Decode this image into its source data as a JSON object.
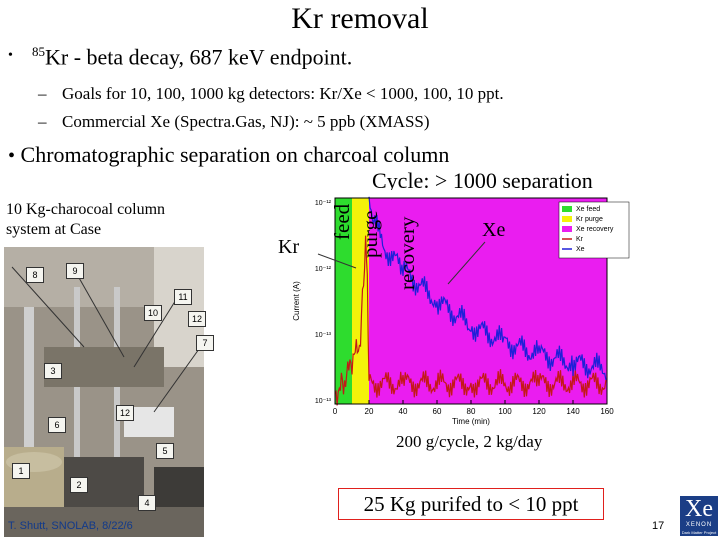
{
  "title": "Kr removal",
  "bullet1": {
    "sup": "85",
    "text": "Kr -  beta decay, 687 keV endpoint."
  },
  "subbullets": [
    {
      "dash": "–",
      "text": "Goals for 10,  100, 1000 kg detectors: Kr/Xe  < 1000, 100, 10 ppt."
    },
    {
      "dash": "–",
      "text": "Commercial Xe (Spectra.Gas, NJ): ~ 5 ppb (XMASS)"
    }
  ],
  "bullet2": {
    "dot": "•",
    "text": "Chromatographic separation on charcoal column"
  },
  "cycle_text": "Cycle:  > 1000 separation",
  "photo_note": [
    "10 Kg-charocoal column",
    "system at Case"
  ],
  "photo_tags": [
    "8",
    "9",
    "11",
    "10",
    "12",
    "7",
    "3",
    "12",
    "6",
    "5",
    "1",
    "2",
    "4"
  ],
  "chart_annotations": {
    "kr": "Kr",
    "xe": "Xe",
    "feed": "feed",
    "purge": "purge",
    "recovery": "recovery"
  },
  "caption": "200 g/cycle, 2 kg/day",
  "highlight_box": "25 Kg purifed to < 10 ppt",
  "footer": "T. Shutt, SNOLAB, 8/22/6",
  "page_number": "17",
  "logo": {
    "big": "Xe",
    "small": "XENON",
    "tiny": "Dark Matter Project"
  },
  "colors": {
    "feed_band": "#2edc2e",
    "purge_band": "#f4f20a",
    "recovery_band": "#ea1df0",
    "xe_trace": "#1f1fd8",
    "kr_trace": "#c41818",
    "box_border": "#e0201d"
  },
  "chart_data": {
    "type": "line",
    "xlabel": "Time (min)",
    "ylabel": "Current (A)",
    "xlim": [
      0,
      160
    ],
    "ylim_log10": [
      -13,
      -12
    ],
    "x_ticks": [
      "0",
      "20",
      "40",
      "60",
      "80",
      "100",
      "120",
      "140",
      "160"
    ],
    "y_ticks": [
      "10⁻¹²",
      "10⁻¹²",
      "10⁻¹³",
      "10⁻¹³"
    ],
    "legend": [
      "Xe feed",
      "Kr purge",
      "Xe recovery",
      "Kr",
      "Xe"
    ],
    "legend_placement": "top-right",
    "bands": [
      {
        "name": "Xe feed",
        "x": [
          0,
          10
        ]
      },
      {
        "name": "Kr purge",
        "x": [
          10,
          20
        ]
      },
      {
        "name": "Xe recovery",
        "x": [
          20,
          160
        ]
      }
    ],
    "series": [
      {
        "name": "Kr",
        "x": [
          0,
          5,
          10,
          15,
          18,
          19,
          20,
          40,
          80,
          120,
          160
        ],
        "y": [
          -12.95,
          -12.9,
          -12.8,
          -12.7,
          -12.2,
          -12.4,
          -12.9,
          -12.9,
          -12.9,
          -12.9,
          -12.9
        ]
      },
      {
        "name": "Xe",
        "x": [
          20,
          22,
          30,
          40,
          60,
          80,
          100,
          120,
          140,
          160
        ],
        "y": [
          -12.05,
          -12.1,
          -12.25,
          -12.35,
          -12.5,
          -12.62,
          -12.7,
          -12.76,
          -12.8,
          -12.83
        ]
      }
    ]
  }
}
